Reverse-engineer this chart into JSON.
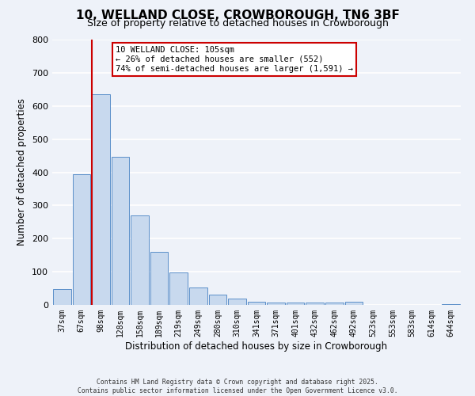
{
  "title": "10, WELLAND CLOSE, CROWBOROUGH, TN6 3BF",
  "subtitle": "Size of property relative to detached houses in Crowborough",
  "xlabel": "Distribution of detached houses by size in Crowborough",
  "ylabel": "Number of detached properties",
  "bin_labels": [
    "37sqm",
    "67sqm",
    "98sqm",
    "128sqm",
    "158sqm",
    "189sqm",
    "219sqm",
    "249sqm",
    "280sqm",
    "310sqm",
    "341sqm",
    "371sqm",
    "401sqm",
    "432sqm",
    "462sqm",
    "492sqm",
    "523sqm",
    "553sqm",
    "583sqm",
    "614sqm",
    "644sqm"
  ],
  "bin_values": [
    48,
    395,
    635,
    447,
    270,
    160,
    98,
    52,
    30,
    18,
    10,
    8,
    8,
    8,
    8,
    10,
    0,
    0,
    0,
    0,
    2
  ],
  "bar_color": "#c8d9ee",
  "bar_edge_color": "#5b8fc9",
  "vline_color": "#cc0000",
  "annotation_title": "10 WELLAND CLOSE: 105sqm",
  "annotation_line1": "← 26% of detached houses are smaller (552)",
  "annotation_line2": "74% of semi-detached houses are larger (1,591) →",
  "annotation_box_facecolor": "#ffffff",
  "annotation_box_edgecolor": "#cc0000",
  "ylim": [
    0,
    800
  ],
  "yticks": [
    0,
    100,
    200,
    300,
    400,
    500,
    600,
    700,
    800
  ],
  "background_color": "#eef2f9",
  "grid_color": "#ffffff",
  "footer_line1": "Contains HM Land Registry data © Crown copyright and database right 2025.",
  "footer_line2": "Contains public sector information licensed under the Open Government Licence v3.0."
}
